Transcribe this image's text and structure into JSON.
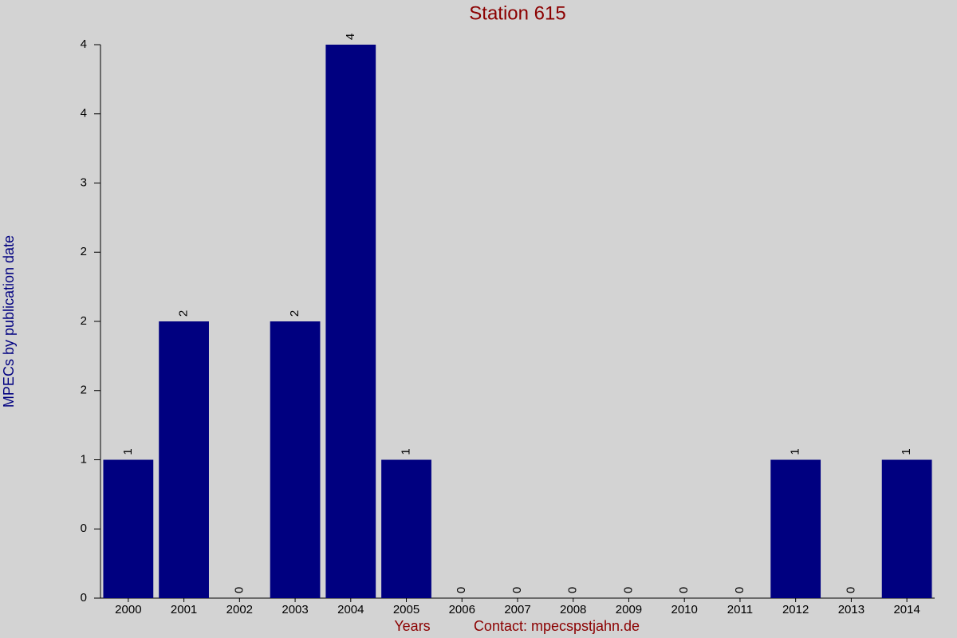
{
  "chart_data": {
    "type": "bar",
    "title": "Station 615",
    "x_label": "Years",
    "contact": "Contact: mpecspstjahn.de",
    "y_label": "MPECs by publication date",
    "categories": [
      "2000",
      "2001",
      "2002",
      "2003",
      "2004",
      "2005",
      "2006",
      "2007",
      "2008",
      "2009",
      "2010",
      "2011",
      "2012",
      "2013",
      "2014"
    ],
    "values": [
      1,
      2,
      0,
      2,
      4,
      1,
      0,
      0,
      0,
      0,
      0,
      0,
      1,
      0,
      1
    ],
    "color": "#000080",
    "ylim": [
      0,
      4
    ],
    "yticks": [
      0,
      {
        "value": 0.5,
        "label": "0"
      },
      1,
      {
        "value": 1.5,
        "label": "2"
      },
      2,
      {
        "value": 2.5,
        "label": "2"
      },
      3,
      {
        "value": 3.5,
        "label": "4"
      },
      4
    ]
  }
}
